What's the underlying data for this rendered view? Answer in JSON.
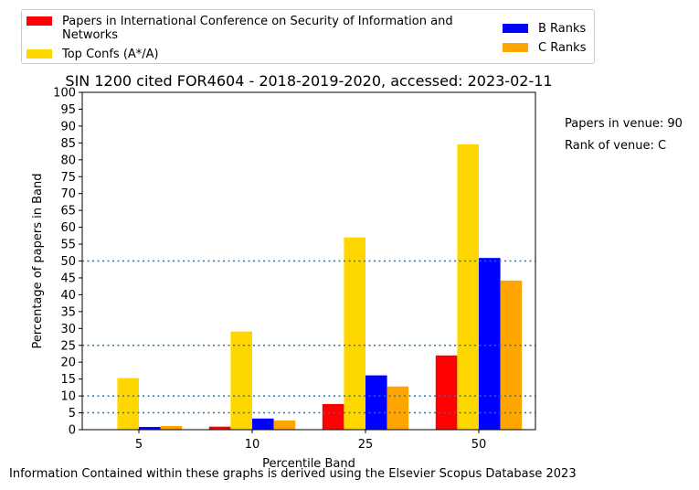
{
  "chart_data": {
    "type": "bar",
    "title": "SIN 1200 cited FOR4604 - 2018-2019-2020, accessed: 2023-02-11",
    "xlabel": "Percentile Band",
    "ylabel": "Percentage of papers in Band",
    "categories": [
      "5",
      "10",
      "25",
      "50"
    ],
    "ylim": [
      0,
      100
    ],
    "yticks": [
      0,
      5,
      10,
      15,
      20,
      25,
      30,
      35,
      40,
      45,
      50,
      55,
      60,
      65,
      70,
      75,
      80,
      85,
      90,
      95,
      100
    ],
    "reference_lines": [
      5,
      10,
      25,
      50
    ],
    "grid": false,
    "legend_position": "top",
    "series": [
      {
        "name": "Papers in International Conference on Security of Information and Networks",
        "color": "#ff0000",
        "values": [
          0,
          0.9,
          7.6,
          22
        ]
      },
      {
        "name": "Top Confs (A*/A)",
        "color": "#ffd700",
        "values": [
          15.3,
          29.1,
          57,
          84.6
        ]
      },
      {
        "name": "B Ranks",
        "color": "#0000ff",
        "values": [
          0.8,
          3.3,
          16.1,
          50.9
        ]
      },
      {
        "name": "C Ranks",
        "color": "#ffa500",
        "values": [
          1.1,
          2.7,
          12.8,
          44.2
        ]
      }
    ]
  },
  "side_info": {
    "papers_in_venue": "Papers in venue: 90",
    "rank_of_venue": "Rank of venue: C"
  },
  "footer": "Information Contained within these graphs is derived using the Elsevier Scopus Database 2023",
  "colors": {
    "reference_line": "#1f77b4"
  }
}
